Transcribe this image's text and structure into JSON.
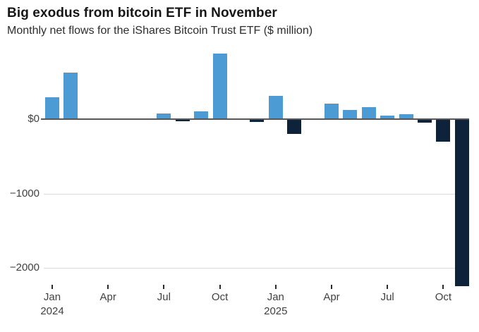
{
  "header": {
    "title": "Big exodus from bitcoin ETF in November",
    "subtitle": "Monthly net flows for the iShares Bitcoin Trust ETF ($ million)"
  },
  "chart_data": {
    "type": "bar",
    "title": "Big exodus from bitcoin ETF in November",
    "subtitle": "Monthly net flows for the iShares Bitcoin Trust ETF ($ million)",
    "unit": "$ million",
    "categories": [
      "Jan 2024",
      "Feb 2024",
      "Mar 2024",
      "Apr 2024",
      "May 2024",
      "Jun 2024",
      "Jul 2024",
      "Aug 2024",
      "Sep 2024",
      "Oct 2024",
      "Nov 2024",
      "Dec 2024",
      "Jan 2025",
      "Feb 2025",
      "Mar 2025",
      "Apr 2025",
      "May 2025",
      "Jun 2025",
      "Jul 2025",
      "Aug 2025",
      "Sep 2025",
      "Oct 2025",
      "Nov 2025"
    ],
    "values": [
      295,
      625,
      0,
      0,
      0,
      0,
      80,
      -15,
      105,
      880,
      0,
      -30,
      315,
      -185,
      0,
      210,
      125,
      160,
      45,
      70,
      -40,
      -295,
      -2240
    ],
    "xlabel": "",
    "ylabel": "",
    "ylim": [
      -2400,
      950
    ],
    "grid": "horizontal",
    "legend": "none",
    "yticks": [
      {
        "value": 0,
        "label": "$0"
      },
      {
        "value": -1000,
        "label": "−1000"
      },
      {
        "value": -2000,
        "label": "−2000"
      }
    ],
    "xticks": [
      {
        "index": 0,
        "label": "Jan",
        "year": "2024"
      },
      {
        "index": 3,
        "label": "Apr",
        "year": ""
      },
      {
        "index": 6,
        "label": "Jul",
        "year": ""
      },
      {
        "index": 9,
        "label": "Oct",
        "year": ""
      },
      {
        "index": 12,
        "label": "Jan",
        "year": "2025"
      },
      {
        "index": 15,
        "label": "Apr",
        "year": ""
      },
      {
        "index": 18,
        "label": "Jul",
        "year": ""
      },
      {
        "index": 21,
        "label": "Oct",
        "year": ""
      }
    ],
    "colors": {
      "positive_bar": "#4d9bd5",
      "negative_bar": "#0e2339",
      "zero_line": "#55575a",
      "gridline": "#d9d9d9",
      "axis_text": "#414042",
      "tick_mark": "#2b2b2b",
      "background": "#ffffff"
    }
  }
}
